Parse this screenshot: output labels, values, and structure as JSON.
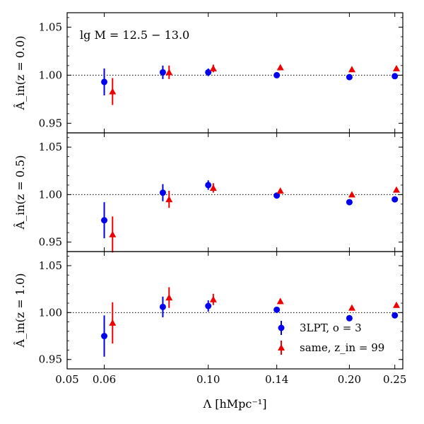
{
  "chart_data": {
    "type": "scatter",
    "x_scale": "log",
    "xlim": [
      0.05,
      0.26
    ],
    "xlabel": "Λ [hMpc⁻¹]",
    "xticks": [
      {
        "value": 0.05,
        "label": "0.05"
      },
      {
        "value": 0.06,
        "label": "0.06"
      },
      {
        "value": 0.1,
        "label": "0.10"
      },
      {
        "value": 0.14,
        "label": "0.14"
      },
      {
        "value": 0.2,
        "label": "0.20"
      },
      {
        "value": 0.25,
        "label": "0.25"
      }
    ],
    "annotation": "lg M = 12.5 − 13.0",
    "reference_line": 1.0,
    "legend": {
      "placement": "lower-right",
      "entries": [
        {
          "label": "3LPT, o = 3",
          "marker": "circle",
          "color": "#0000ee"
        },
        {
          "label": "same, z_in = 99",
          "marker": "triangle",
          "color": "#ee0000"
        }
      ]
    },
    "panels": [
      {
        "ylabel": "Â_in(z = 0.0)",
        "ylim": [
          0.94,
          1.065
        ],
        "yticks": [
          {
            "value": 0.95,
            "label": "0.95"
          },
          {
            "value": 1.0,
            "label": "1.00"
          },
          {
            "value": 1.05,
            "label": "1.05"
          }
        ],
        "series": [
          {
            "marker": "circle",
            "color": "#0000ee",
            "x": [
              0.06,
              0.08,
              0.1,
              0.14,
              0.2,
              0.25
            ],
            "y": [
              0.993,
              1.003,
              1.003,
              1.0,
              0.998,
              0.999
            ],
            "err": [
              0.014,
              0.007,
              0.004,
              0.002,
              0.002,
              0.002
            ]
          },
          {
            "marker": "triangle",
            "color": "#ee0000",
            "x": [
              0.0625,
              0.0825,
              0.1025,
              0.1425,
              0.2025,
              0.252
            ],
            "y": [
              0.983,
              1.003,
              1.007,
              1.008,
              1.006,
              1.007
            ],
            "err": [
              0.014,
              0.007,
              0.004,
              0.002,
              0.002,
              0.002
            ]
          }
        ]
      },
      {
        "ylabel": "Â_in(z = 0.5)",
        "ylim": [
          0.94,
          1.065
        ],
        "yticks": [
          {
            "value": 0.95,
            "label": "0.95"
          },
          {
            "value": 1.0,
            "label": "1.00"
          },
          {
            "value": 1.05,
            "label": "1.05"
          }
        ],
        "series": [
          {
            "marker": "circle",
            "color": "#0000ee",
            "x": [
              0.06,
              0.08,
              0.1,
              0.14,
              0.2,
              0.25
            ],
            "y": [
              0.973,
              1.002,
              1.01,
              0.999,
              0.992,
              0.995
            ],
            "err": [
              0.019,
              0.009,
              0.005,
              0.002,
              0.002,
              0.002
            ]
          },
          {
            "marker": "triangle",
            "color": "#ee0000",
            "x": [
              0.0625,
              0.0825,
              0.1025,
              0.1425,
              0.2025,
              0.252
            ],
            "y": [
              0.958,
              0.995,
              1.007,
              1.004,
              1.0,
              1.005
            ],
            "err": [
              0.019,
              0.009,
              0.005,
              0.002,
              0.002,
              0.002
            ]
          }
        ]
      },
      {
        "ylabel": "Â_in(z = 1.0)",
        "ylim": [
          0.94,
          1.065
        ],
        "yticks": [
          {
            "value": 0.95,
            "label": "0.95"
          },
          {
            "value": 1.0,
            "label": "1.00"
          },
          {
            "value": 1.05,
            "label": "1.05"
          }
        ],
        "series": [
          {
            "marker": "circle",
            "color": "#0000ee",
            "x": [
              0.06,
              0.08,
              0.1,
              0.14,
              0.2,
              0.25
            ],
            "y": [
              0.975,
              1.006,
              1.007,
              1.003,
              0.994,
              0.997
            ],
            "err": [
              0.022,
              0.011,
              0.006,
              0.003,
              0.002,
              0.002
            ]
          },
          {
            "marker": "triangle",
            "color": "#ee0000",
            "x": [
              0.0625,
              0.0825,
              0.1025,
              0.1425,
              0.2025,
              0.252
            ],
            "y": [
              0.989,
              1.016,
              1.014,
              1.012,
              1.005,
              1.008
            ],
            "err": [
              0.022,
              0.011,
              0.006,
              0.003,
              0.002,
              0.002
            ]
          }
        ]
      }
    ]
  }
}
